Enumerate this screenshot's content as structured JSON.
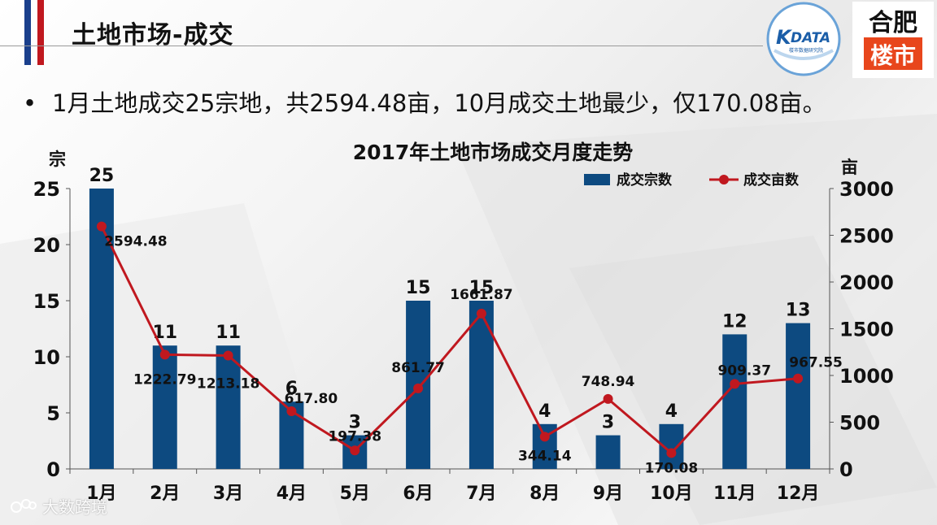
{
  "header": {
    "title": "土地市场-成交",
    "accent_colors": [
      "#1a3f8c",
      "#c0181f"
    ]
  },
  "logos": {
    "kdata_text": "DATA",
    "kdata_mark": "K",
    "kdata_subtitle": "楼市数据研究院",
    "hf_top": "合肥",
    "hf_bottom": "楼市"
  },
  "summary": {
    "bullet": "•",
    "text": "1月土地成交25宗地，共2594.48亩，10月成交土地最少，仅170.08亩。"
  },
  "watermark": {
    "text": "大数跨境"
  },
  "chart_data": {
    "type": "bar",
    "title": "2017年土地市场成交月度走势",
    "categories": [
      "1月",
      "2月",
      "3月",
      "4月",
      "5月",
      "6月",
      "7月",
      "8月",
      "9月",
      "10月",
      "11月",
      "12月"
    ],
    "series": [
      {
        "name": "成交宗数",
        "type": "bar",
        "axis": "left",
        "color": "#0d4a80",
        "values": [
          25,
          11,
          11,
          6,
          3,
          15,
          15,
          4,
          3,
          4,
          12,
          13
        ]
      },
      {
        "name": "成交亩数",
        "type": "line",
        "axis": "right",
        "color": "#c0181f",
        "values": [
          2594.48,
          1222.79,
          1213.18,
          617.8,
          197.38,
          861.77,
          1661.87,
          344.14,
          748.94,
          170.08,
          909.37,
          967.55
        ],
        "labels": [
          "2594.48",
          "1222.79",
          "1213.18",
          "617.80",
          "197.38",
          "861.77",
          "1661.87",
          "344.14",
          "748.94",
          "170.08",
          "909.37",
          "967.55"
        ]
      }
    ],
    "ylabel_left": "宗",
    "ylabel_right": "亩",
    "ylim_left": [
      0,
      25
    ],
    "yticks_left": [
      0,
      5,
      10,
      15,
      20,
      25
    ],
    "ylim_right": [
      0,
      3000
    ],
    "yticks_right": [
      0,
      500,
      1000,
      1500,
      2000,
      2500,
      3000
    ],
    "grid": false,
    "legend": "top-right"
  }
}
